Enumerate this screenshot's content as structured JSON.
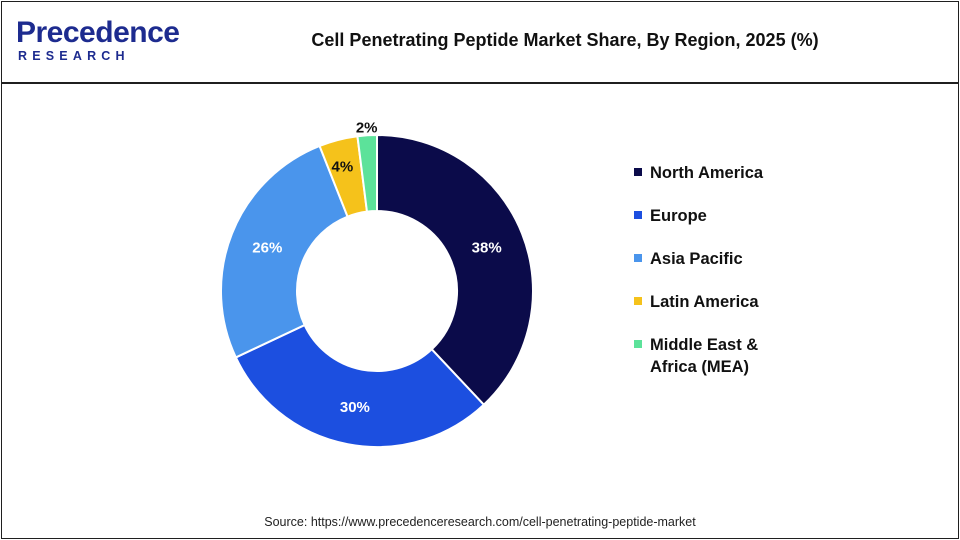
{
  "logo": {
    "main": "Precedence",
    "sub": "RESEARCH",
    "color": "#1d2b8f"
  },
  "title": "Cell Penetrating Peptide Market Share, By Region, 2025 (%)",
  "source": "Source: https://www.precedenceresearch.com/cell-penetrating-peptide-market",
  "chart_data": {
    "type": "pie",
    "title": "Cell Penetrating Peptide Market Share, By Region, 2025 (%)",
    "donut": true,
    "categories": [
      "North America",
      "Europe",
      "Asia Pacific",
      "Latin America",
      "Middle East & Africa (MEA)"
    ],
    "values": [
      38,
      30,
      26,
      4,
      2
    ],
    "labels": [
      "38%",
      "30%",
      "26%",
      "4%",
      "2%"
    ],
    "colors": [
      "#0b0b4a",
      "#1c4fe0",
      "#4a95ec",
      "#f5c21b",
      "#5ce29a"
    ],
    "label_colors": [
      "#ffffff",
      "#ffffff",
      "#ffffff",
      "#111111",
      "#111111"
    ],
    "legend_position": "right"
  },
  "legend": [
    {
      "label": "North America",
      "color": "#0b0b4a"
    },
    {
      "label": "Europe",
      "color": "#1c4fe0"
    },
    {
      "label": "Asia Pacific",
      "color": "#4a95ec"
    },
    {
      "label": "Latin America",
      "color": "#f5c21b"
    },
    {
      "label": "Middle East &\nAfrica (MEA)",
      "color": "#5ce29a"
    }
  ]
}
